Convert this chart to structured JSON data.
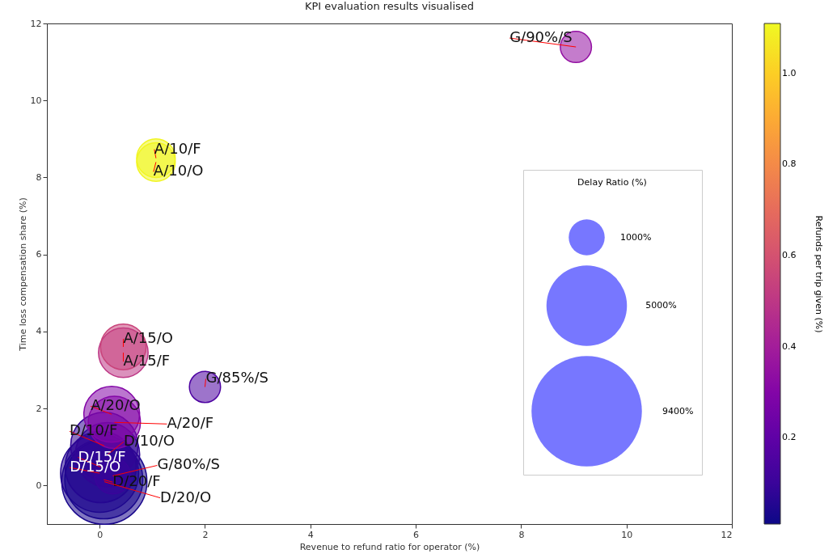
{
  "chart_data": {
    "type": "bubble",
    "title": "KPI evaluation results visualised",
    "xlabel": "Revenue to refund ratio for operator (%)",
    "ylabel": "Time loss compensation share (%)",
    "clabel": "Refunds per trip given (%)",
    "legend_title": "Delay Ratio (%)",
    "x": [
      9.04,
      1.07,
      1.07,
      0.45,
      0.45,
      2.0,
      0.23,
      0.28,
      0.09,
      0.15,
      0.02,
      0.0,
      0.25,
      0.08,
      0.09
    ],
    "values": [
      11.39,
      8.5,
      8.4,
      3.6,
      3.45,
      2.56,
      1.85,
      1.64,
      1.03,
      0.8,
      0.48,
      0.32,
      0.25,
      0.15,
      0.1
    ],
    "sizes": [
      750,
      1150,
      1150,
      1600,
      1900,
      750,
      2400,
      2100,
      3500,
      3200,
      3900,
      4700,
      1000,
      4700,
      5600
    ],
    "cvalues": [
      0.35,
      1.1,
      1.1,
      0.55,
      0.5,
      0.15,
      0.3,
      0.3,
      0.08,
      0.08,
      0.05,
      0.05,
      0.1,
      0.03,
      0.03
    ],
    "size_legend": [
      {
        "value": 1000,
        "label": "1000%"
      },
      {
        "value": 5000,
        "label": "5000%"
      },
      {
        "value": 9400,
        "label": "9400%"
      }
    ],
    "xlim": [
      -1,
      12
    ],
    "ylim": [
      -1,
      12
    ],
    "xticks": [
      0,
      2,
      4,
      6,
      8,
      10,
      12
    ],
    "yticks": [
      0,
      2,
      4,
      6,
      8,
      10,
      12
    ],
    "clim": [
      0.01,
      1.11
    ],
    "cticks": [
      {
        "value": 0.2,
        "label": "0.2"
      },
      {
        "value": 0.4,
        "label": "0.4"
      },
      {
        "value": 0.6,
        "label": "0.6"
      },
      {
        "value": 0.8,
        "label": "0.8"
      },
      {
        "value": 1,
        "label": "1.0"
      }
    ],
    "grid": false,
    "annotations": [
      {
        "text": "G/90%/S",
        "x": 9.04,
        "y": 11.39
      },
      {
        "text": "A/10/F",
        "x": 1.07,
        "y": 8.5
      },
      {
        "text": "A/10/O",
        "x": 1.07,
        "y": 8.4
      },
      {
        "text": "A/15/O",
        "x": 0.45,
        "y": 3.6
      },
      {
        "text": "A/15/F",
        "x": 0.45,
        "y": 3.45
      },
      {
        "text": "G/85%/S",
        "x": 2.0,
        "y": 2.56
      },
      {
        "text": "A/20/O",
        "x": 0.23,
        "y": 1.85
      },
      {
        "text": "A/20/F",
        "x": 0.28,
        "y": 1.64
      },
      {
        "text": "D/10/F",
        "x": 0.09,
        "y": 1.03
      },
      {
        "text": "D/10/O",
        "x": 0.15,
        "y": 0.8
      },
      {
        "text": "D/15/F",
        "x": 0.02,
        "y": 0.48
      },
      {
        "text": "D/15/O",
        "x": 0.0,
        "y": 0.32
      },
      {
        "text": "G/80%/S",
        "x": 0.25,
        "y": 0.25
      },
      {
        "text": "D/20/F",
        "x": 0.08,
        "y": 0.15
      },
      {
        "text": "D/20/O",
        "x": 0.09,
        "y": 0.1
      }
    ]
  }
}
